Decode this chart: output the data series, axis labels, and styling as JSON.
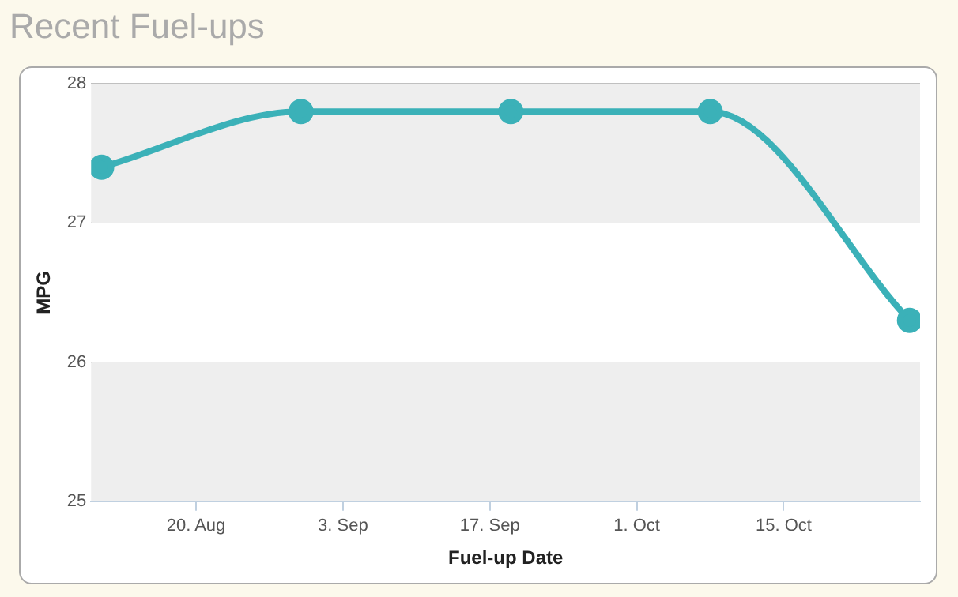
{
  "chart_data": {
    "type": "line",
    "title": "Recent Fuel-ups",
    "xlabel": "Fuel-up Date",
    "ylabel": "MPG",
    "x": [
      "--08-11",
      "--08-30",
      "--09-19",
      "--10-08",
      "--10-27"
    ],
    "series": [
      {
        "color": "#3bb1b8",
        "values": [
          27.4,
          27.8,
          27.8,
          27.8,
          26.3
        ]
      }
    ],
    "xlim": [
      "--08-10",
      "--10-28"
    ],
    "xticks": [
      {
        "value": "--08-20",
        "label": "20. Aug"
      },
      {
        "value": "--09-03",
        "label": "3. Sep"
      },
      {
        "value": "--09-17",
        "label": "17. Sep"
      },
      {
        "value": "--10-01",
        "label": "1. Oct"
      },
      {
        "value": "--10-15",
        "label": "15. Oct"
      }
    ],
    "ylim": [
      25,
      28
    ],
    "yticks": [
      25,
      26,
      27,
      28
    ],
    "bands": [
      {
        "axis": "y",
        "from": 25,
        "to": 26,
        "color": "#eeeeee"
      },
      {
        "axis": "y",
        "from": 27,
        "to": 28,
        "color": "#eeeeee"
      }
    ],
    "grid": "y",
    "marker": "circle",
    "line_style": "solid",
    "legend": false
  }
}
